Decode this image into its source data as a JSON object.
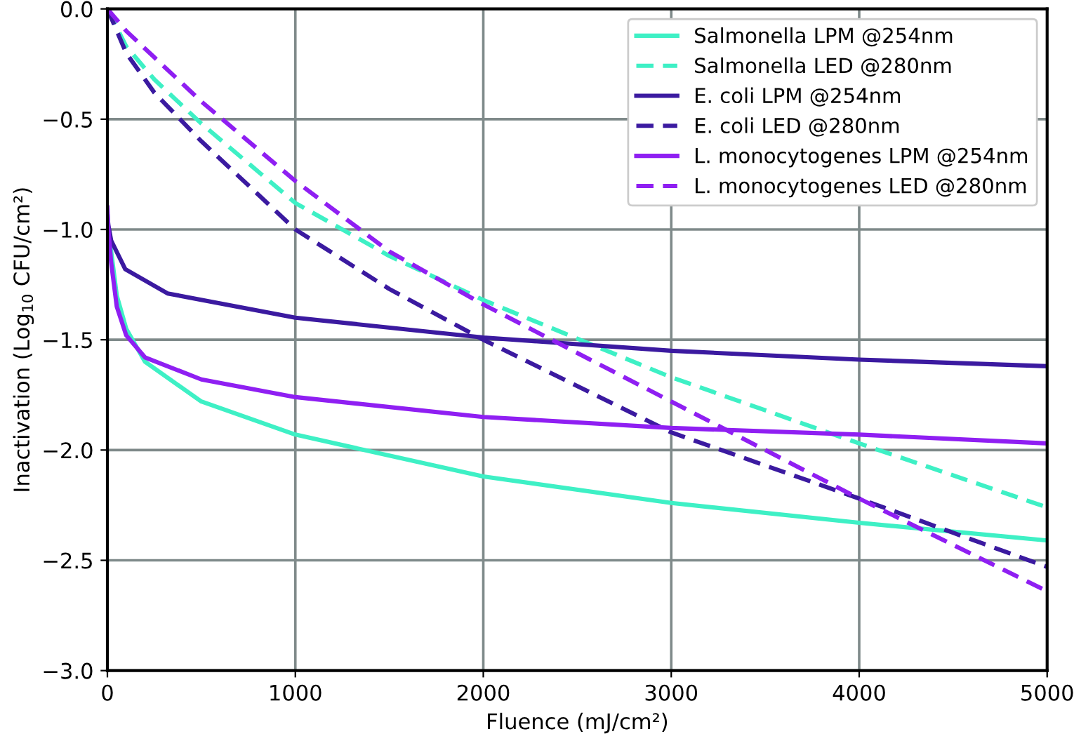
{
  "chart_data": {
    "type": "line",
    "xlabel": "Fluence (mJ/cm²)",
    "ylabel": "Inactivation (Log$_{10}$ CFU/cm²)",
    "xlim": [
      0,
      5000
    ],
    "xticks": [
      0,
      1000,
      2000,
      3000,
      4000,
      5000
    ],
    "ylim": [
      -3.0,
      0.0
    ],
    "yticks": [
      {
        "value": -3.0,
        "label": "−3.0"
      },
      {
        "value": -2.5,
        "label": "−2.5"
      },
      {
        "value": -2.0,
        "label": "−2.0"
      },
      {
        "value": -1.5,
        "label": "−1.5"
      },
      {
        "value": -1.0,
        "label": "−1.0"
      },
      {
        "value": -0.5,
        "label": "−0.5"
      },
      {
        "value": 0.0,
        "label": "0.0"
      }
    ],
    "grid": true,
    "legend": "top right",
    "marker": "none",
    "series": [
      {
        "name": "Salmonella LPM @254nm",
        "color": "#3ef0c5",
        "line_style": "solid",
        "x": [
          5,
          20,
          50,
          100,
          200,
          500,
          1000,
          2000,
          3000,
          4000,
          5000
        ],
        "values": [
          -1.0,
          -1.1,
          -1.3,
          -1.45,
          -1.6,
          -1.78,
          -1.93,
          -2.12,
          -2.24,
          -2.33,
          -2.41
        ]
      },
      {
        "name": "Salmonella LED @280nm",
        "color": "#3ef0c5",
        "line_style": "dashed",
        "x": [
          0,
          100,
          250,
          500,
          1000,
          1500,
          2000,
          3000,
          4000,
          5000
        ],
        "values": [
          0,
          -0.17,
          -0.32,
          -0.52,
          -0.88,
          -1.12,
          -1.32,
          -1.67,
          -1.97,
          -2.26
        ]
      },
      {
        "name": "E. coli LPM @254nm",
        "color": "#3b1aa0",
        "line_style": "solid",
        "x": [
          0,
          5,
          20,
          95,
          320,
          1000,
          2000,
          3000,
          4000,
          5000
        ],
        "values": [
          -0.93,
          -0.98,
          -1.05,
          -1.18,
          -1.29,
          -1.4,
          -1.49,
          -1.55,
          -1.59,
          -1.62
        ]
      },
      {
        "name": "E. coli LED @280nm",
        "color": "#3b1aa0",
        "line_style": "dashed",
        "x": [
          0,
          100,
          250,
          500,
          1000,
          1500,
          2000,
          3000,
          4000,
          5000
        ],
        "values": [
          0,
          -0.2,
          -0.38,
          -0.6,
          -1.0,
          -1.27,
          -1.5,
          -1.92,
          -2.22,
          -2.53
        ]
      },
      {
        "name": "L. monocytogenes LPM @254nm",
        "color": "#8f1ff2",
        "line_style": "solid",
        "x": [
          0,
          5,
          20,
          50,
          100,
          200,
          500,
          1000,
          2000,
          3000,
          4000,
          5000
        ],
        "values": [
          -0.9,
          -1.0,
          -1.15,
          -1.35,
          -1.48,
          -1.58,
          -1.68,
          -1.76,
          -1.85,
          -1.9,
          -1.93,
          -1.97
        ]
      },
      {
        "name": "L. monocytogenes LED @280nm",
        "color": "#8f1ff2",
        "line_style": "dashed",
        "x": [
          0,
          100,
          250,
          500,
          1000,
          1500,
          2000,
          3000,
          4000,
          5000
        ],
        "values": [
          0,
          -0.1,
          -0.22,
          -0.42,
          -0.78,
          -1.1,
          -1.34,
          -1.78,
          -2.22,
          -2.64
        ]
      }
    ]
  }
}
